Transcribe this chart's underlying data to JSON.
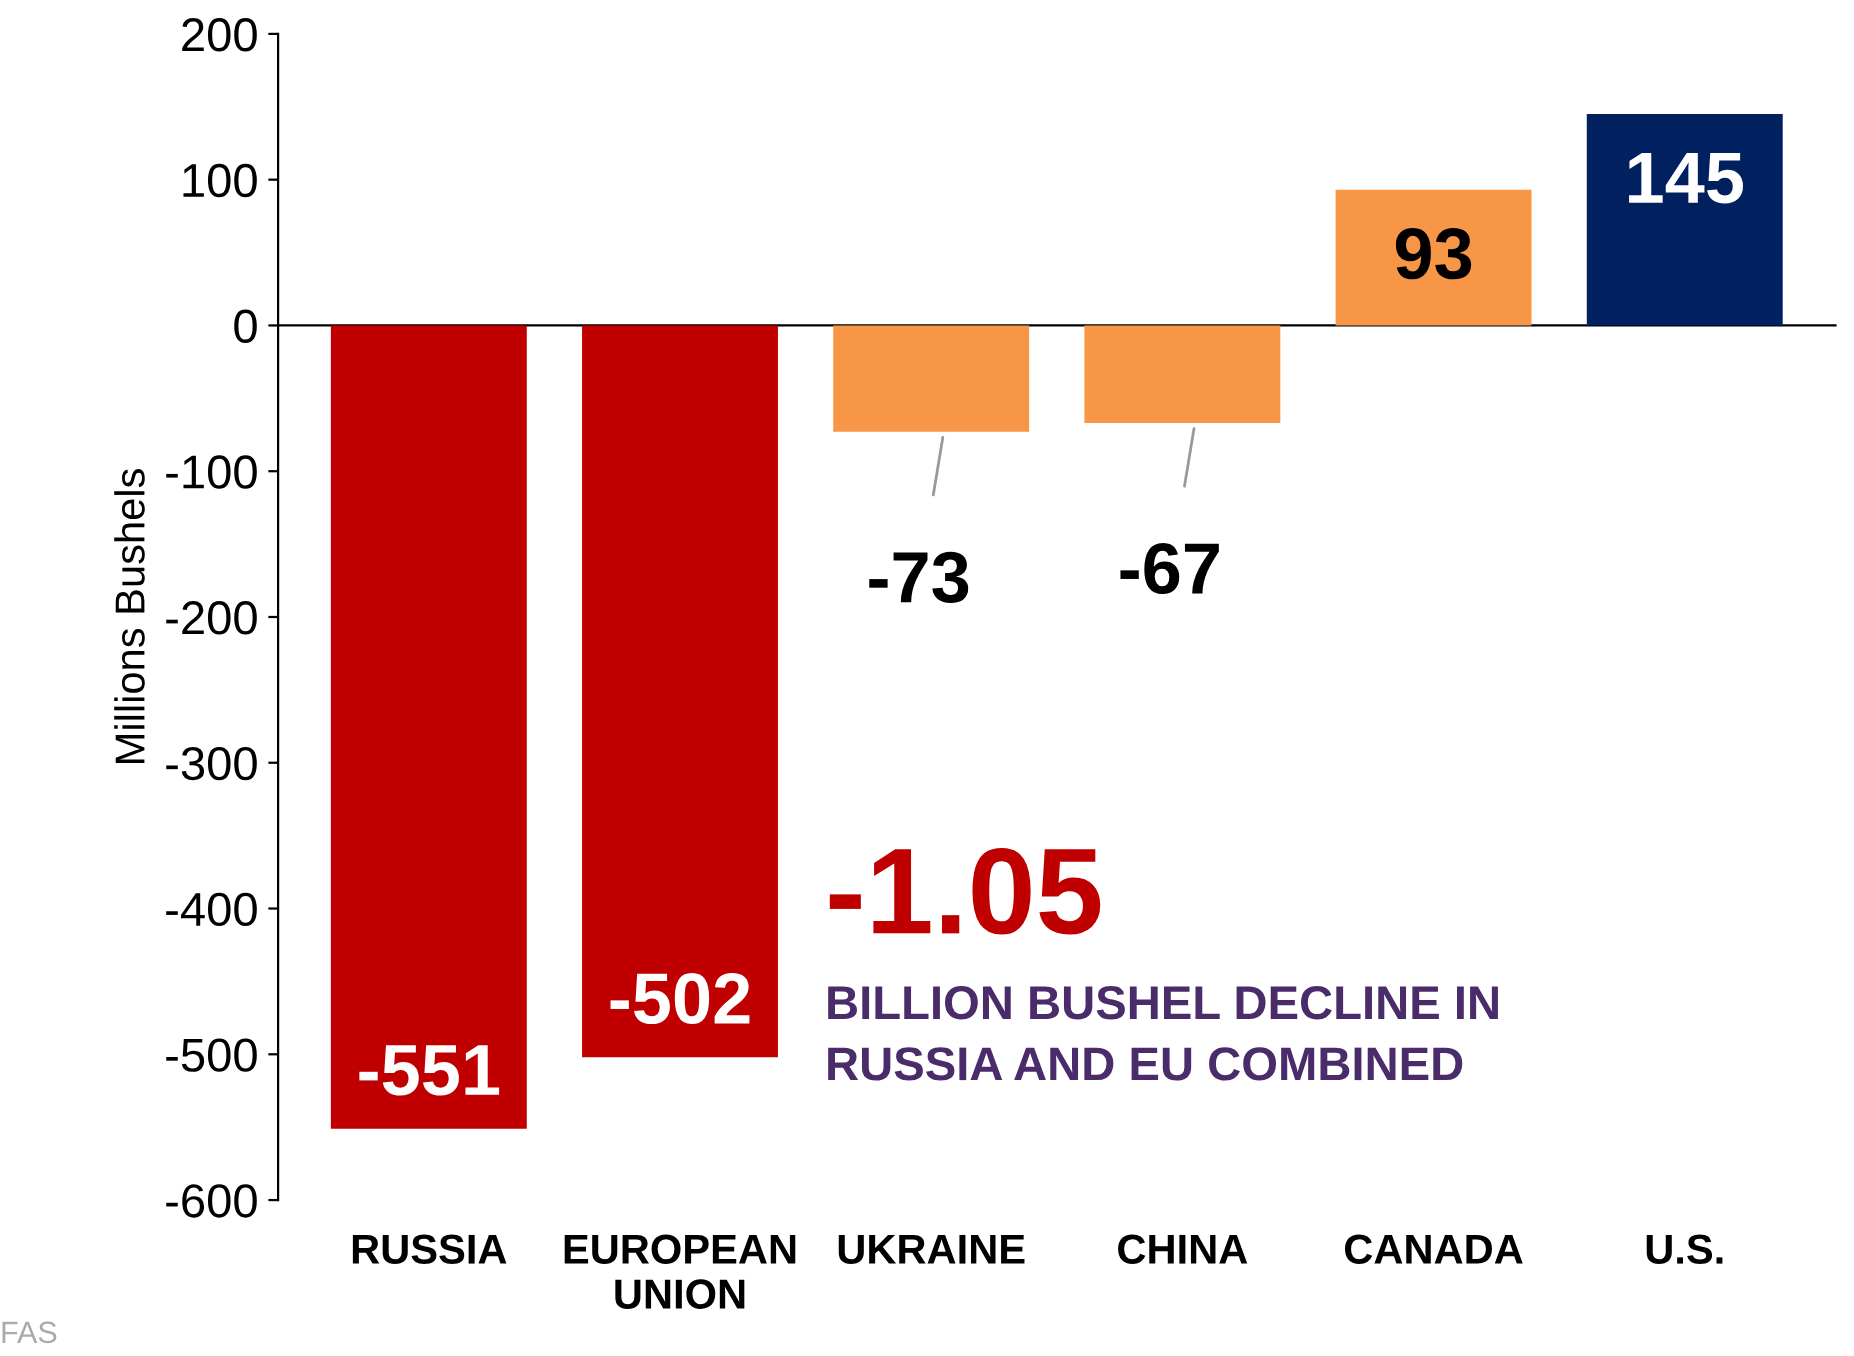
{
  "chart_data": {
    "type": "bar",
    "ylabel": "Millions Bushels",
    "categories": [
      "RUSSIA",
      "EUROPEAN\nUNION",
      "UKRAINE",
      "CHINA",
      "CANADA",
      "U.S."
    ],
    "values": [
      -551,
      -502,
      -73,
      -67,
      93,
      145
    ],
    "colors": [
      "#c00000",
      "#c00000",
      "#f79646",
      "#f79646",
      "#f79646",
      "#002060"
    ],
    "data_labels": true,
    "ylim": [
      -600,
      200
    ],
    "yticks": [
      -600,
      -500,
      -400,
      -300,
      -200,
      -100,
      0,
      100,
      200
    ],
    "legend": false,
    "annotations": [
      "-1.05",
      "BILLION BUSHEL DECLINE IN\nRUSSIA AND EU COMBINED",
      "FAS"
    ]
  }
}
